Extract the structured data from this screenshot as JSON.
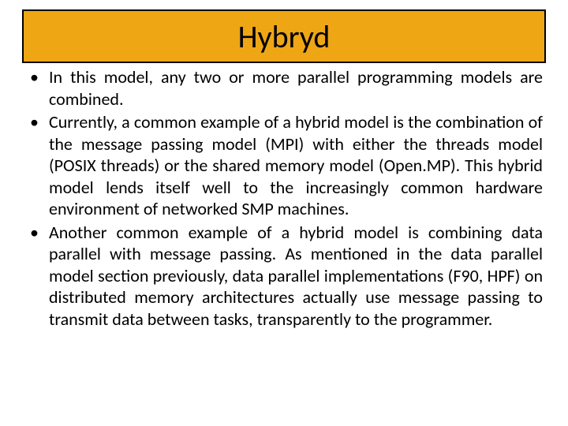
{
  "slide": {
    "title": "Hybryd",
    "title_bg": "#eea614",
    "title_border": "#000000",
    "title_color": "#000000",
    "title_fontsize": 40,
    "body_fontsize": 22,
    "body_color": "#000000",
    "background": "#ffffff",
    "bullets": [
      "In this model, any two or more parallel programming models are combined.",
      "Currently, a common example of a hybrid model is the combination of the message passing model (MPI) with either the threads model (POSIX threads) or the shared memory model (Open.MP). This hybrid model lends itself well to the increasingly common hardware environment of networked SMP machines.",
      "Another common example of a hybrid model is combining data parallel with message passing. As mentioned in the data parallel model section previously, data parallel implementations (F90, HPF) on distributed memory architectures actually use message passing to transmit data between tasks, transparently to the programmer."
    ]
  }
}
